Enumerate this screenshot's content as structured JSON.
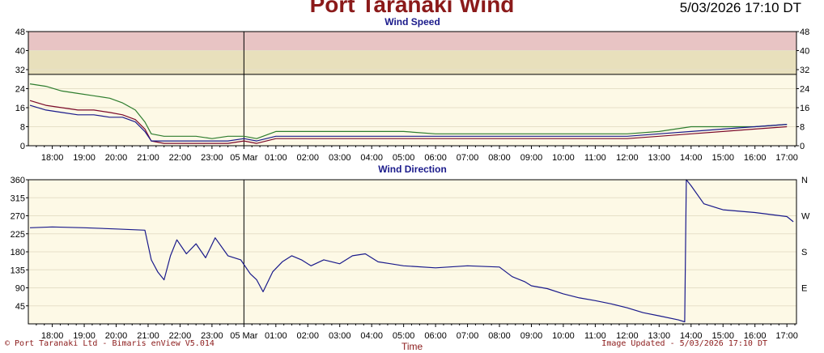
{
  "header": {
    "title": "Port Taranaki Wind",
    "timestamp": "5/03/2026 17:10 DT"
  },
  "footer": {
    "left": "© Port Taranaki Ltd - Bimaris enView V5.014",
    "x_title": "Time",
    "right": "Image Updated - 5/03/2026 17:10 DT"
  },
  "chart_data": [
    {
      "type": "line",
      "title": "Wind Speed",
      "ylim": [
        0,
        48
      ],
      "yticks": [
        0,
        8,
        16,
        24,
        32,
        40,
        48
      ],
      "x_ticks": [
        "18:00",
        "19:00",
        "20:00",
        "21:00",
        "22:00",
        "23:00",
        "05 Mar",
        "01:00",
        "02:00",
        "03:00",
        "04:00",
        "05:00",
        "06:00",
        "07:00",
        "08:00",
        "09:00",
        "10:00",
        "11:00",
        "12:00",
        "13:00",
        "14:00",
        "15:00",
        "16:00",
        "17:00"
      ],
      "bands": [
        {
          "from": 30,
          "to": 40,
          "color": "#e8e0bc"
        },
        {
          "from": 40,
          "to": 48,
          "color": "#e8c4c4"
        }
      ],
      "series": [
        {
          "color": "#2e7d2e",
          "x": [
            17.3,
            17.8,
            18.3,
            18.8,
            19.3,
            19.8,
            20.2,
            20.6,
            20.9,
            21.1,
            21.5,
            22.0,
            22.5,
            23.0,
            23.5,
            24.0,
            24.4,
            25.0,
            25.5,
            26.0,
            27.0,
            28.0,
            29.0,
            30.0,
            31.0,
            32.0,
            33.0,
            34.0,
            35.0,
            36.0,
            37.0,
            38.0,
            39.0,
            40.0,
            41.0
          ],
          "values": [
            26,
            25,
            23,
            22,
            21,
            20,
            18,
            15,
            10,
            5,
            4,
            4,
            4,
            3,
            4,
            4,
            3,
            6,
            6,
            6,
            6,
            6,
            6,
            5,
            5,
            5,
            5,
            5,
            5,
            5,
            6,
            8,
            8,
            8,
            9
          ]
        },
        {
          "color": "#7b0a2a",
          "x": [
            17.3,
            17.8,
            18.3,
            18.8,
            19.3,
            19.8,
            20.2,
            20.6,
            20.9,
            21.1,
            21.5,
            22.0,
            22.5,
            23.0,
            23.5,
            24.0,
            24.4,
            25.0,
            25.5,
            26.0,
            27.0,
            28.0,
            29.0,
            30.0,
            31.0,
            32.0,
            33.0,
            34.0,
            35.0,
            36.0,
            37.0,
            38.0,
            39.0,
            40.0,
            41.0
          ],
          "values": [
            19,
            17,
            16,
            15,
            15,
            14,
            13,
            11,
            7,
            2,
            1,
            1,
            1,
            1,
            1,
            2,
            1,
            3,
            3,
            3,
            3,
            3,
            3,
            3,
            3,
            3,
            3,
            3,
            3,
            3,
            4,
            5,
            6,
            7,
            8
          ]
        },
        {
          "color": "#1a1a8b",
          "x": [
            17.3,
            17.8,
            18.3,
            18.8,
            19.3,
            19.8,
            20.2,
            20.6,
            20.9,
            21.1,
            21.5,
            22.0,
            22.5,
            23.0,
            23.5,
            24.0,
            24.4,
            25.0,
            25.5,
            26.0,
            27.0,
            28.0,
            29.0,
            30.0,
            31.0,
            32.0,
            33.0,
            34.0,
            35.0,
            36.0,
            37.0,
            38.0,
            39.0,
            40.0,
            41.0
          ],
          "values": [
            17,
            15,
            14,
            13,
            13,
            12,
            12,
            10,
            6,
            2,
            2,
            2,
            2,
            2,
            2,
            3,
            2,
            4,
            4,
            4,
            4,
            4,
            4,
            4,
            4,
            4,
            4,
            4,
            4,
            4,
            5,
            6,
            7,
            8,
            9
          ]
        }
      ]
    },
    {
      "type": "line",
      "title": "Wind Direction",
      "ylim": [
        0,
        360
      ],
      "yticks": [
        45,
        90,
        135,
        180,
        225,
        270,
        315,
        360
      ],
      "right_ticks": [
        {
          "value": 360,
          "label": "N"
        },
        {
          "value": 270,
          "label": "W"
        },
        {
          "value": 180,
          "label": "S"
        },
        {
          "value": 90,
          "label": "E"
        }
      ],
      "x_ticks": [
        "18:00",
        "19:00",
        "20:00",
        "21:00",
        "22:00",
        "23:00",
        "05 Mar",
        "01:00",
        "02:00",
        "03:00",
        "04:00",
        "05:00",
        "06:00",
        "07:00",
        "08:00",
        "09:00",
        "10:00",
        "11:00",
        "12:00",
        "13:00",
        "14:00",
        "15:00",
        "16:00",
        "17:00"
      ],
      "series": [
        {
          "color": "#1a1a8b",
          "x": [
            17.3,
            18.0,
            19.0,
            20.0,
            20.9,
            21.1,
            21.3,
            21.5,
            21.7,
            21.9,
            22.2,
            22.5,
            22.8,
            23.1,
            23.5,
            23.9,
            24.2,
            24.4,
            24.6,
            24.9,
            25.2,
            25.5,
            25.8,
            26.1,
            26.5,
            27.0,
            27.4,
            27.8,
            28.2,
            28.6,
            29.0,
            30.0,
            31.0,
            32.0,
            32.4,
            32.8,
            33.0,
            33.5,
            34.0,
            34.5,
            35.0,
            35.5,
            36.0,
            36.5,
            37.0,
            37.6,
            37.8,
            37.85,
            38.0,
            38.4,
            39.0,
            40.0,
            41.0,
            41.2
          ],
          "values": [
            240,
            242,
            240,
            237,
            234,
            160,
            130,
            110,
            170,
            210,
            175,
            200,
            165,
            215,
            170,
            160,
            125,
            110,
            80,
            130,
            155,
            170,
            160,
            145,
            160,
            150,
            170,
            175,
            155,
            150,
            145,
            140,
            145,
            142,
            118,
            105,
            95,
            88,
            75,
            65,
            58,
            50,
            40,
            28,
            20,
            10,
            5,
            360,
            345,
            300,
            285,
            278,
            268,
            255
          ]
        }
      ]
    }
  ]
}
